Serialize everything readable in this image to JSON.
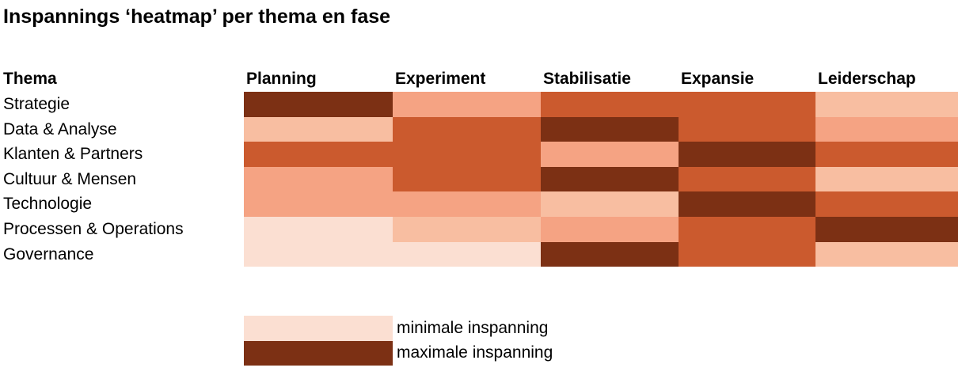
{
  "title": "Inspannings ‘heatmap’ per thema en fase",
  "chart_data": {
    "type": "heatmap",
    "row_header": "Thema",
    "columns": [
      "Planning",
      "Experiment",
      "Stabilisatie",
      "Expansie",
      "Leiderschap"
    ],
    "rows": [
      "Strategie",
      "Data & Analyse",
      "Klanten & Partners",
      "Cultuur & Mensen",
      "Technologie",
      "Processen & Operations",
      "Governance"
    ],
    "scale": {
      "levels": 5,
      "min_meaning": "minimale inspanning",
      "max_meaning": "maximale inspanning",
      "palette": [
        "#FBDFD2",
        "#F8BEA1",
        "#F5A383",
        "#CB5A2E",
        "#7C3014"
      ]
    },
    "values": [
      [
        5,
        3,
        4,
        4,
        2
      ],
      [
        2,
        4,
        5,
        4,
        3
      ],
      [
        4,
        4,
        3,
        5,
        4
      ],
      [
        3,
        4,
        5,
        4,
        2
      ],
      [
        3,
        3,
        2,
        5,
        4
      ],
      [
        1,
        2,
        3,
        4,
        5
      ],
      [
        1,
        1,
        5,
        4,
        2
      ]
    ],
    "legend_position": "bottom-left",
    "grid": false
  },
  "legend": {
    "items": [
      {
        "label": "minimale inspanning",
        "level": 1
      },
      {
        "label": "maximale inspanning",
        "level": 5
      }
    ]
  }
}
